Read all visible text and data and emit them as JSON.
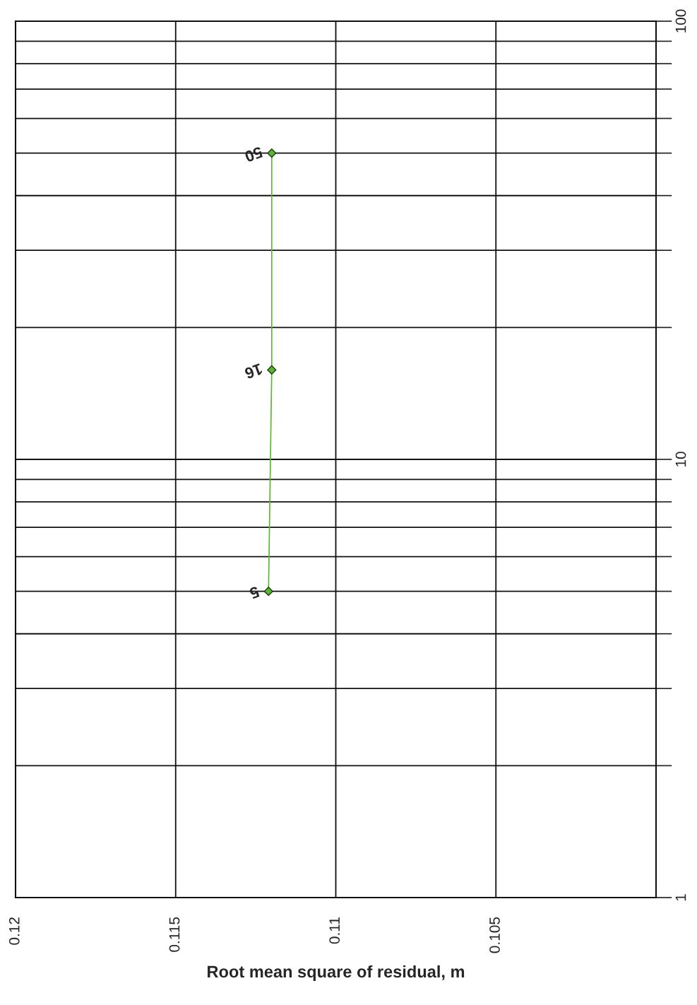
{
  "chart_data": {
    "type": "line",
    "orientation": "horizontal",
    "xlabel": "Root mean square of residual, m",
    "x": [
      5,
      16,
      50
    ],
    "series": [
      {
        "color": "#5cb531",
        "values": [
          0.1121,
          0.112,
          0.112
        ]
      }
    ],
    "annotations": [
      "5",
      "16",
      "50"
    ],
    "marker": "diamond",
    "log": "y",
    "grid": true,
    "xlim": [
      0.12,
      0.1
    ],
    "xticks": [
      0.12,
      0.115,
      0.11,
      0.105,
      {
        "value": 0.1,
        "label": null
      }
    ],
    "ylim": [
      1,
      100
    ],
    "yticks": [
      1,
      10,
      100
    ]
  }
}
